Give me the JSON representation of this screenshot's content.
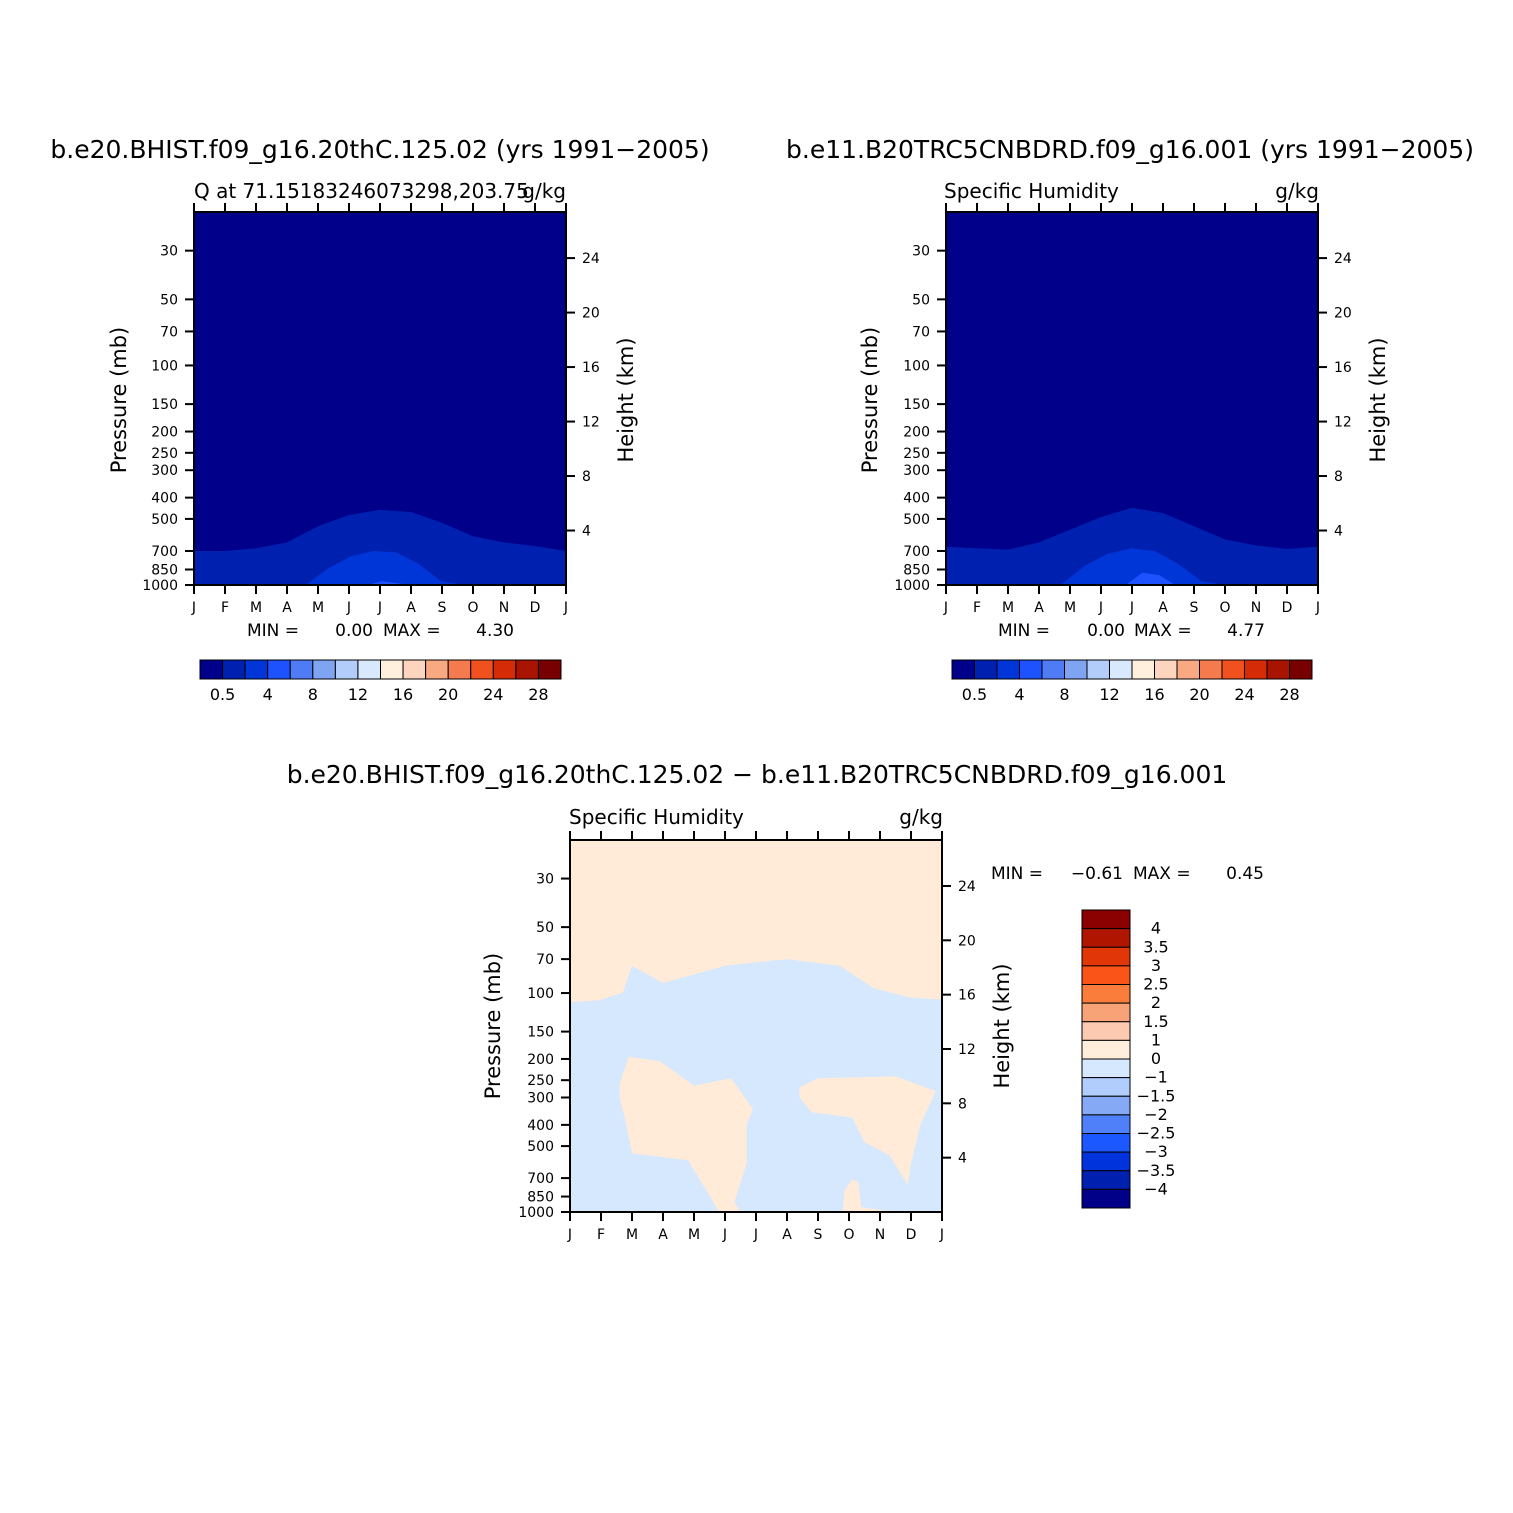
{
  "chart_data": [
    {
      "type": "heatmap",
      "id": "model1",
      "title": "b.e20.BHIST.f09_g16.20thC.125.02 (yrs 1991−2005)",
      "subtitle_left": "Q at 71.15183246073298,203.75",
      "subtitle_right": "g/kg",
      "ylabel": "Pressure (mb)",
      "ylabel_right": "Height (km)",
      "x_ticks": [
        "J",
        "F",
        "M",
        "A",
        "M",
        "J",
        "J",
        "A",
        "S",
        "O",
        "N",
        "D",
        "J"
      ],
      "y_ticks": [
        30,
        50,
        70,
        100,
        150,
        200,
        250,
        300,
        400,
        500,
        700,
        850,
        1000
      ],
      "y_right_ticks": [
        24,
        20,
        16,
        12,
        8,
        4
      ],
      "ylim": [
        1000,
        20
      ],
      "min_label": "MIN =",
      "min_value": "0.00",
      "max_label": "MAX =",
      "max_value": "4.30",
      "contour_levels": [
        0.5,
        4,
        8,
        12,
        16,
        20,
        24,
        28
      ],
      "colorbar_labels": [
        "0.5",
        "4",
        "8",
        "12",
        "16",
        "20",
        "24",
        "28"
      ],
      "colorbar_colors": [
        "#00008b",
        "#0020b0",
        "#0035d8",
        "#1f52ff",
        "#4f7cf5",
        "#7fa4f2",
        "#b3cdfa",
        "#d8e8fd",
        "#fff0de",
        "#fdd5bf",
        "#f9a982",
        "#f57a4d",
        "#f1511e",
        "#d52b06",
        "#a81400",
        "#780000"
      ],
      "background_color": "#00008b",
      "regions": [
        {
          "level": "0.5",
          "color": "#0020b0",
          "boundary_pressure": [
            700,
            700,
            680,
            640,
            540,
            480,
            455,
            465,
            520,
            600,
            640,
            665,
            700
          ]
        },
        {
          "level": "1",
          "color": "#0035d8",
          "x_start": 3.6,
          "x_end": 8.7,
          "boundary_pressure": [
            1000,
            840,
            740,
            700,
            710,
            800,
            960,
            1000
          ]
        },
        {
          "level": "2",
          "color": "#1f52ff",
          "x_start": 5.6,
          "x_end": 7.0,
          "boundary_pressure": [
            1000,
            960,
            980,
            1000
          ]
        }
      ]
    },
    {
      "type": "heatmap",
      "id": "model2",
      "title": "b.e11.B20TRC5CNBDRD.f09_g16.001 (yrs 1991−2005)",
      "subtitle_left": "Specific Humidity",
      "subtitle_right": "g/kg",
      "ylabel": "Pressure (mb)",
      "ylabel_right": "Height (km)",
      "x_ticks": [
        "J",
        "F",
        "M",
        "A",
        "M",
        "J",
        "J",
        "A",
        "S",
        "O",
        "N",
        "D",
        "J"
      ],
      "y_ticks": [
        30,
        50,
        70,
        100,
        150,
        200,
        250,
        300,
        400,
        500,
        700,
        850,
        1000
      ],
      "y_right_ticks": [
        24,
        20,
        16,
        12,
        8,
        4
      ],
      "ylim": [
        1000,
        20
      ],
      "min_label": "MIN =",
      "min_value": "0.00",
      "max_label": "MAX =",
      "max_value": "4.77",
      "contour_levels": [
        0.5,
        4,
        8,
        12,
        16,
        20,
        24,
        28
      ],
      "colorbar_labels": [
        "0.5",
        "4",
        "8",
        "12",
        "16",
        "20",
        "24",
        "28"
      ],
      "colorbar_colors": [
        "#00008b",
        "#0020b0",
        "#0035d8",
        "#1f52ff",
        "#4f7cf5",
        "#7fa4f2",
        "#b3cdfa",
        "#d8e8fd",
        "#fff0de",
        "#fdd5bf",
        "#f9a982",
        "#f57a4d",
        "#f1511e",
        "#d52b06",
        "#a81400",
        "#780000"
      ],
      "background_color": "#00008b",
      "regions": [
        {
          "level": "0.5",
          "color": "#0020b0",
          "boundary_pressure": [
            670,
            680,
            690,
            640,
            560,
            490,
            445,
            470,
            540,
            620,
            660,
            685,
            670
          ]
        },
        {
          "level": "1",
          "color": "#0035d8",
          "x_start": 3.7,
          "x_end": 9.0,
          "boundary_pressure": [
            1000,
            820,
            720,
            680,
            700,
            800,
            960,
            1000
          ]
        },
        {
          "level": "2",
          "color": "#1f52ff",
          "x_start": 5.8,
          "x_end": 7.4,
          "boundary_pressure": [
            1000,
            880,
            900,
            1000
          ]
        }
      ]
    },
    {
      "type": "heatmap",
      "id": "difference",
      "title": "b.e20.BHIST.f09_g16.20thC.125.02 − b.e11.B20TRC5CNBDRD.f09_g16.001",
      "subtitle_left": "Specific Humidity",
      "subtitle_right": "g/kg",
      "ylabel": "Pressure (mb)",
      "ylabel_right": "Height (km)",
      "x_ticks": [
        "J",
        "F",
        "M",
        "A",
        "M",
        "J",
        "J",
        "A",
        "S",
        "O",
        "N",
        "D",
        "J"
      ],
      "y_ticks": [
        30,
        50,
        70,
        100,
        150,
        200,
        250,
        300,
        400,
        500,
        700,
        850,
        1000
      ],
      "y_right_ticks": [
        24,
        20,
        16,
        12,
        8,
        4
      ],
      "ylim": [
        1000,
        20
      ],
      "min_label": "MIN =",
      "min_value": "−0.61",
      "max_label": "MAX =",
      "max_value": "0.45",
      "contour_levels": [
        4,
        3.5,
        3,
        2.5,
        2,
        1.5,
        1,
        0,
        -1,
        -1.5,
        -2,
        -2.5,
        -3,
        -3.5,
        -4
      ],
      "colorbar_labels": [
        "4",
        "3.5",
        "3",
        "2.5",
        "2",
        "1.5",
        "1",
        "0",
        "−1",
        "−1.5",
        "−2",
        "−2.5",
        "−3",
        "−3.5",
        "−4"
      ],
      "colorbar_colors": [
        "#8b0000",
        "#b01500",
        "#e03608",
        "#fb5418",
        "#fa7d3c",
        "#f8a377",
        "#fbcab0",
        "#ffeedc",
        "#d6e8fd",
        "#b0cdfb",
        "#85a9f5",
        "#4f80fa",
        "#1c58ff",
        "#0033dc",
        "#0020b0",
        "#000088"
      ],
      "background_color": "#ffebd8",
      "regions": [
        {
          "level": "0 to -1",
          "color": "#d6e8fd",
          "lower_boundary_pressure_at": "bottom",
          "upper_boundary": [
            [
              0,
              110
            ],
            [
              0.9,
              108
            ],
            [
              1.7,
              100
            ],
            [
              2.0,
              75
            ],
            [
              3.0,
              90
            ],
            [
              5.0,
              75
            ],
            [
              7.0,
              70
            ],
            [
              8.7,
              75
            ],
            [
              9.8,
              95
            ],
            [
              11.0,
              105
            ],
            [
              12.0,
              107
            ]
          ]
        },
        {
          "level": "0 to 1",
          "color": "#ffebd8",
          "blob": [
            [
              1.6,
              260
            ],
            [
              1.9,
              195
            ],
            [
              2.9,
              205
            ],
            [
              4.0,
              265
            ],
            [
              5.2,
              245
            ],
            [
              5.9,
              340
            ],
            [
              5.7,
              400
            ],
            [
              5.7,
              600
            ],
            [
              5.3,
              900
            ],
            [
              5.5,
              1000
            ],
            [
              4.8,
              1000
            ],
            [
              4.5,
              840
            ],
            [
              3.8,
              580
            ],
            [
              2.0,
              540
            ],
            [
              1.8,
              390
            ],
            [
              1.6,
              300
            ]
          ]
        },
        {
          "level": "0 to 1",
          "color": "#ffebd8",
          "blob": [
            [
              7.4,
              270
            ],
            [
              8.0,
              245
            ],
            [
              10.5,
              240
            ],
            [
              11.8,
              280
            ],
            [
              11.3,
              400
            ],
            [
              11.0,
              600
            ],
            [
              10.9,
              750
            ],
            [
              10.3,
              550
            ],
            [
              9.5,
              480
            ],
            [
              9.1,
              370
            ],
            [
              7.8,
              350
            ],
            [
              7.4,
              300
            ]
          ]
        },
        {
          "level": "0 to 1",
          "color": "#ffebd8",
          "blob": [
            [
              8.8,
              1000
            ],
            [
              8.85,
              800
            ],
            [
              9.1,
              710
            ],
            [
              9.3,
              730
            ],
            [
              9.4,
              950
            ],
            [
              10.0,
              980
            ],
            [
              11.0,
              1000
            ]
          ]
        }
      ]
    }
  ]
}
